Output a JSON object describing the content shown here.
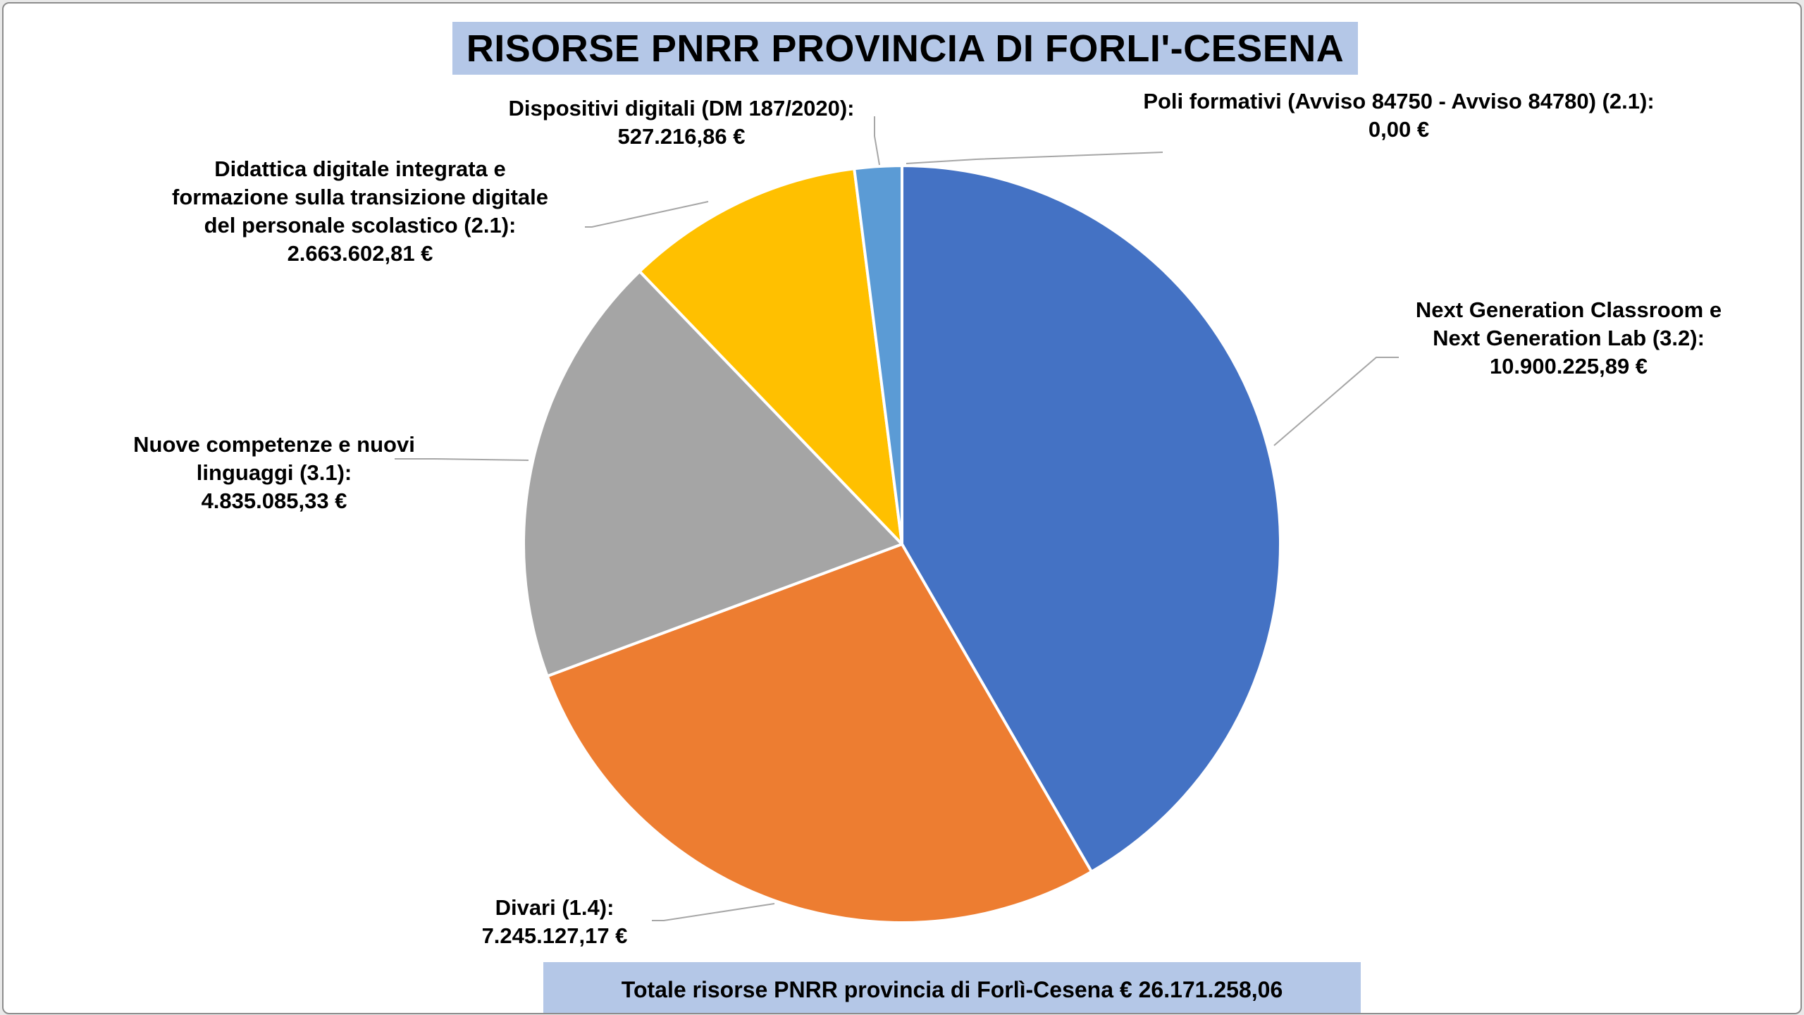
{
  "title": "RISORSE PNRR PROVINCIA DI FORLI'-CESENA",
  "total": "Totale risorse PNRR provincia di Forlì-Cesena € 26.171.258,06",
  "chart_data": {
    "type": "pie",
    "title": "RISORSE PNRR PROVINCIA DI FORLI'-CESENA",
    "start_angle_deg": 0,
    "direction": "clockwise",
    "slices": [
      {
        "name": "Poli formativi (Avviso 84750 - Avviso 84780) (2.1)",
        "value": 0.0,
        "color": "#4472c4",
        "label_lines": [
          "Poli formativi (Avviso 84750 - Avviso 84780) (2.1):",
          "0,00 €"
        ]
      },
      {
        "name": "Next Generation Classroom e Next Generation Lab (3.2)",
        "value": 10900225.89,
        "color": "#4472c4",
        "label_lines": [
          "Next Generation Classroom e",
          "Next Generation Lab (3.2):",
          "10.900.225,89 €"
        ]
      },
      {
        "name": "Divari (1.4)",
        "value": 7245127.17,
        "color": "#ed7d31",
        "label_lines": [
          "Divari (1.4):",
          "7.245.127,17 €"
        ]
      },
      {
        "name": "Nuove competenze e nuovi linguaggi (3.1)",
        "value": 4835085.33,
        "color": "#a5a5a5",
        "label_lines": [
          "Nuove competenze e nuovi",
          "linguaggi (3.1):",
          "4.835.085,33 €"
        ]
      },
      {
        "name": "Didattica digitale integrata e formazione sulla transizione digitale del personale scolastico (2.1)",
        "value": 2663602.81,
        "color": "#ffc000",
        "label_lines": [
          "Didattica digitale integrata e",
          "formazione sulla transizione digitale",
          "del personale scolastico (2.1):",
          "2.663.602,81 €"
        ]
      },
      {
        "name": "Dispositivi digitali (DM 187/2020)",
        "value": 527216.86,
        "color": "#5b9bd5",
        "label_lines": [
          "Dispositivi digitali (DM 187/2020):",
          "527.216,86 €"
        ]
      }
    ]
  }
}
